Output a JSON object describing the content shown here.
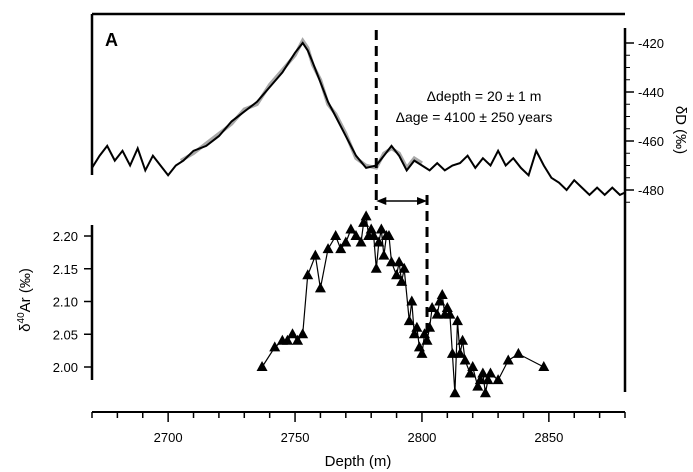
{
  "chart_data": {
    "type": "line",
    "panel_label": "A",
    "x_axis": {
      "label": "Depth (m)",
      "range": [
        2670,
        2880
      ],
      "ticks": [
        2700,
        2750,
        2800,
        2850
      ],
      "tick_labels": [
        "2700",
        "2750",
        "2800",
        "2850"
      ]
    },
    "y_axis_right": {
      "label": "δD (‰)",
      "range": [
        -488,
        -413
      ],
      "ticks": [
        -420,
        -440,
        -460,
        -480
      ],
      "tick_labels": [
        "-420",
        "-440",
        "-460",
        "-480"
      ]
    },
    "y_axis_left": {
      "label_parts": [
        "δ",
        "40",
        "Ar (‰)"
      ],
      "range": [
        1.95,
        2.25
      ],
      "ticks": [
        2.0,
        2.05,
        2.1,
        2.15,
        2.2
      ],
      "tick_labels": [
        "2.00",
        "2.05",
        "2.10",
        "2.15",
        "2.20"
      ]
    },
    "annotations": {
      "delta_depth": "Δdepth = 20 ± 1 m",
      "delta_age": "Δage = 4100 ± 250 years",
      "dashed_lines_depth": [
        2782,
        2802
      ]
    },
    "series": [
      {
        "axis": "right",
        "style": "line",
        "color": "#000000",
        "x": [
          2670,
          2673,
          2676,
          2679,
          2682,
          2685,
          2688,
          2691,
          2694,
          2697,
          2700,
          2703,
          2706,
          2710,
          2715,
          2720,
          2725,
          2730,
          2735,
          2740,
          2745,
          2750,
          2753,
          2755,
          2757,
          2760,
          2763,
          2766,
          2770,
          2774,
          2778,
          2782,
          2785,
          2788,
          2791,
          2794,
          2797,
          2800,
          2803,
          2806,
          2809,
          2812,
          2815,
          2818,
          2821,
          2824,
          2827,
          2830,
          2833,
          2836,
          2839,
          2842,
          2845,
          2848,
          2851,
          2854,
          2857,
          2860,
          2863,
          2866,
          2869,
          2872,
          2875,
          2878,
          2880
        ],
        "y": [
          -471,
          -466,
          -462,
          -468,
          -464,
          -470,
          -463,
          -472,
          -466,
          -470,
          -474,
          -470,
          -468,
          -464,
          -462,
          -458,
          -452,
          -448,
          -444,
          -438,
          -432,
          -424,
          -420,
          -423,
          -428,
          -436,
          -444,
          -450,
          -458,
          -466,
          -471,
          -470,
          -466,
          -462,
          -466,
          -472,
          -468,
          -470,
          -472,
          -469,
          -472,
          -470,
          -469,
          -466,
          -471,
          -467,
          -470,
          -464,
          -470,
          -467,
          -471,
          -474,
          -464,
          -470,
          -475,
          -477,
          -480,
          -476,
          -479,
          -482,
          -479,
          -482,
          -479,
          -482,
          -481
        ]
      },
      {
        "axis": "right",
        "style": "line",
        "color": "#a8a8a8",
        "x": [
          2705,
          2710,
          2715,
          2720,
          2725,
          2730,
          2735,
          2740,
          2745,
          2750,
          2753,
          2755,
          2757,
          2760,
          2763,
          2766,
          2770,
          2774,
          2778,
          2782,
          2785,
          2788,
          2791,
          2794,
          2797,
          2800
        ],
        "y": [
          -468,
          -465,
          -461,
          -457,
          -453,
          -447,
          -445,
          -437,
          -431,
          -425,
          -419,
          -422,
          -429,
          -435,
          -445,
          -449,
          -457,
          -467,
          -470,
          -471,
          -465,
          -463,
          -465,
          -471,
          -467,
          -469
        ]
      },
      {
        "axis": "left",
        "style": "line+triangles",
        "color": "#000000",
        "x": [
          2737,
          2742,
          2745,
          2747,
          2749,
          2751,
          2753,
          2755,
          2758,
          2760,
          2763,
          2766,
          2768,
          2770,
          2772,
          2774,
          2776,
          2777,
          2778,
          2779,
          2780,
          2781,
          2782,
          2783,
          2784,
          2785,
          2786,
          2787,
          2788,
          2790,
          2791,
          2792,
          2793,
          2795,
          2796,
          2797,
          2798,
          2799,
          2800,
          2801,
          2802,
          2803,
          2804,
          2806,
          2807,
          2808,
          2809,
          2810,
          2811,
          2812,
          2813,
          2814,
          2815,
          2816,
          2817,
          2819,
          2820,
          2822,
          2823,
          2824,
          2825,
          2826,
          2827,
          2830,
          2834,
          2838,
          2848
        ],
        "y": [
          2.0,
          2.03,
          2.04,
          2.04,
          2.05,
          2.04,
          2.05,
          2.14,
          2.17,
          2.12,
          2.18,
          2.2,
          2.18,
          2.19,
          2.21,
          2.2,
          2.19,
          2.22,
          2.23,
          2.2,
          2.21,
          2.2,
          2.15,
          2.19,
          2.21,
          2.17,
          2.2,
          2.2,
          2.16,
          2.14,
          2.16,
          2.13,
          2.15,
          2.07,
          2.1,
          2.05,
          2.06,
          2.03,
          2.02,
          2.05,
          2.04,
          2.06,
          2.09,
          2.08,
          2.1,
          2.11,
          2.08,
          2.09,
          2.08,
          2.02,
          1.96,
          2.07,
          2.02,
          2.04,
          2.01,
          1.99,
          2.0,
          1.97,
          1.98,
          1.99,
          1.96,
          1.98,
          1.99,
          1.98,
          2.01,
          2.02,
          2.0
        ]
      }
    ]
  }
}
